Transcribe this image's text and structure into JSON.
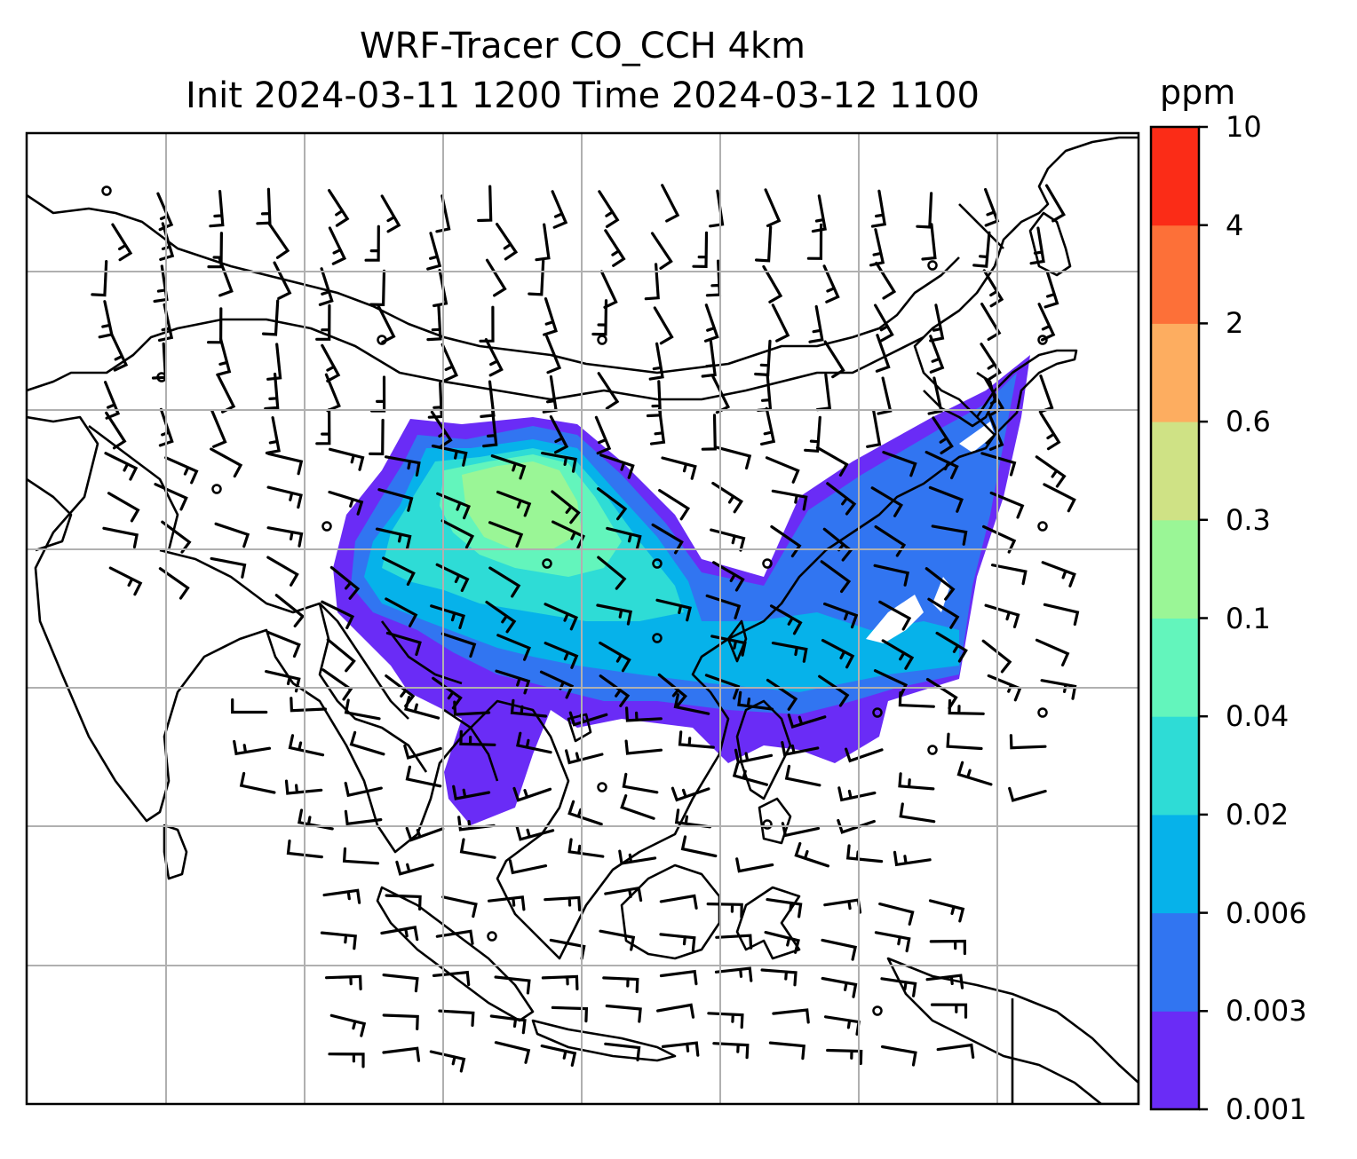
{
  "title_line1": "WRF-Tracer CO_CCH 4km",
  "title_line2": "Init 2024-03-11 1200 Time 2024-03-12 1100",
  "colorbar": {
    "unit": "ppm",
    "levels": [
      "0.001",
      "0.003",
      "0.006",
      "0.02",
      "0.04",
      "0.1",
      "0.3",
      "0.6",
      "2",
      "4",
      "10"
    ],
    "colors": [
      "#6a2cf6",
      "#3175f1",
      "#06b2ea",
      "#2edcd6",
      "#63f5bc",
      "#9af696",
      "#cfe285",
      "#fdad60",
      "#fd7038",
      "#fb2c17"
    ]
  },
  "map": {
    "projection": "Mercator",
    "gridlines": true,
    "features": [
      "coastlines",
      "country borders",
      "wind barbs",
      "CO tracer concentration shading"
    ]
  }
}
